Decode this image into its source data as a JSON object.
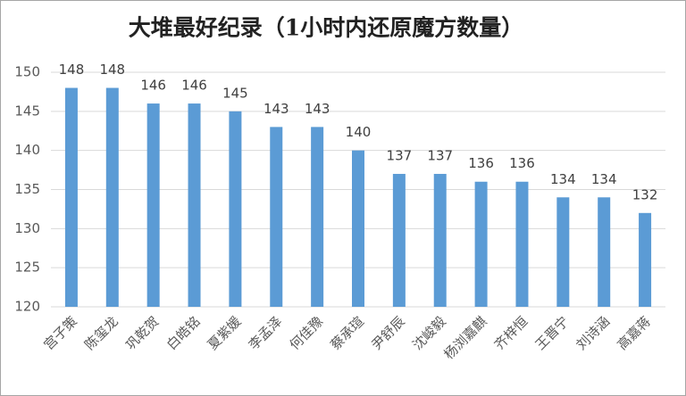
{
  "chart_data": {
    "type": "bar",
    "title": "大堆最好纪录（1小时内还原魔方数量）",
    "categories": [
      "宫子策",
      "陈玺龙",
      "巩乾贺",
      "白皓铭",
      "夏紫媛",
      "李孟泽",
      "何佳豫",
      "蔡承瑄",
      "尹舒辰",
      "沈峻毅",
      "杨浏嘉麒",
      "齐梓恒",
      "王晋宁",
      "刘诗涵",
      "高嘉蒋"
    ],
    "values": [
      148,
      148,
      146,
      146,
      145,
      143,
      143,
      140,
      137,
      137,
      136,
      136,
      134,
      134,
      132
    ],
    "color": "#5b9bd5",
    "ylim": [
      120,
      150
    ],
    "yticks": [
      120,
      125,
      130,
      135,
      140,
      145,
      150
    ],
    "grid": true
  }
}
